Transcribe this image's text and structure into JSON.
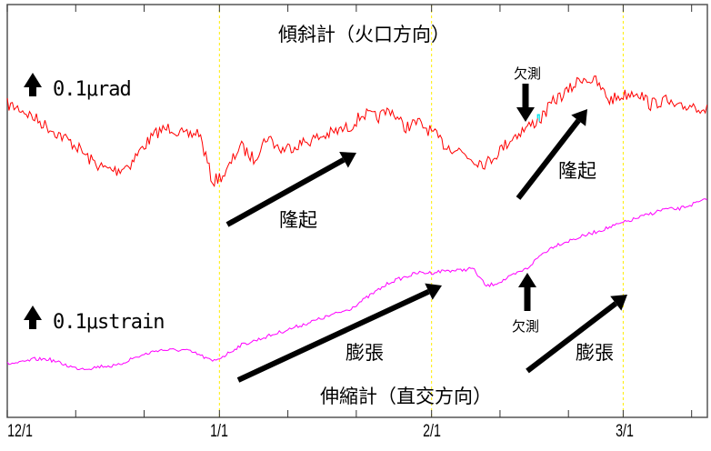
{
  "chart_data": {
    "type": "line",
    "title": "",
    "xlabel": "",
    "ylabel": "",
    "x_ticks": [
      "12/1",
      "1/1",
      "2/1",
      "3/1"
    ],
    "x_minor_tick_interval_days": 10,
    "xlim": [
      "12/1",
      "3/13"
    ],
    "grid": "dashed vertical lines at month starts",
    "x": [
      "12/1",
      "12/3",
      "12/5",
      "12/7",
      "12/9",
      "12/11",
      "12/13",
      "12/15",
      "12/17",
      "12/19",
      "12/21",
      "12/23",
      "12/25",
      "12/27",
      "12/29",
      "12/31",
      "1/2",
      "1/4",
      "1/6",
      "1/8",
      "1/10",
      "1/12",
      "1/14",
      "1/16",
      "1/18",
      "1/20",
      "1/22",
      "1/24",
      "1/26",
      "1/28",
      "1/30",
      "2/1",
      "2/3",
      "2/5",
      "2/7",
      "2/9",
      "2/11",
      "2/13",
      "2/15",
      "2/17",
      "2/19",
      "2/21",
      "2/23",
      "2/25",
      "2/27",
      "3/1",
      "3/3",
      "3/5",
      "3/7",
      "3/9",
      "3/11",
      "3/13"
    ],
    "series": [
      {
        "name": "傾斜計（火口方向）",
        "unit": "μrad",
        "color": "#ff0000",
        "values": [
          0.02,
          0,
          -0.04,
          -0.08,
          -0.12,
          -0.16,
          -0.22,
          -0.26,
          -0.27,
          -0.24,
          -0.16,
          -0.1,
          -0.08,
          -0.12,
          -0.1,
          -0.32,
          -0.28,
          -0.16,
          -0.22,
          -0.12,
          -0.18,
          -0.16,
          -0.14,
          -0.12,
          -0.1,
          -0.08,
          -0.02,
          -0.04,
          0,
          -0.08,
          -0.06,
          -0.1,
          -0.16,
          -0.18,
          -0.22,
          -0.24,
          -0.18,
          -0.12,
          -0.08,
          -0.04,
          0.04,
          0.08,
          0.14,
          0.12,
          0.04,
          0.06,
          0.08,
          0.02,
          0.04,
          0,
          0.02,
          0
        ]
      },
      {
        "name": "伸縮計（直交方向）",
        "unit": "μstrain",
        "color": "#ff00ff",
        "values": [
          0,
          0.004,
          0.02,
          0.02,
          0,
          -0.02,
          -0.02,
          -0.01,
          -0.01,
          0.02,
          0.04,
          0.06,
          0.06,
          0.06,
          0.04,
          0.01,
          0.04,
          0.08,
          0.1,
          0.12,
          0.14,
          0.16,
          0.18,
          0.2,
          0.22,
          0.24,
          0.28,
          0.32,
          0.36,
          0.38,
          0.4,
          0.4,
          0.41,
          0.41,
          0.42,
          0.34,
          0.36,
          0.39,
          0.42,
          0.48,
          0.52,
          0.54,
          0.56,
          0.58,
          0.6,
          0.62,
          0.64,
          0.66,
          0.68,
          0.68,
          0.7,
          0.72
        ]
      }
    ],
    "missing_data": {
      "date": "2/15",
      "color": "#00e5ee"
    },
    "colors": {
      "axis": "#000000",
      "grid": "#ffee00",
      "arrow": "#000000"
    }
  },
  "labels": {
    "tilt_title": "傾斜計（火口方向）",
    "tilt_scale": "0.1μrad",
    "strain_title": "伸縮計（直交方向）",
    "strain_scale": "0.1μstrain",
    "missing_tilt": "欠測",
    "missing_strain": "欠測",
    "uplift_1": "隆起",
    "uplift_2": "隆起",
    "expansion_1": "膨張",
    "expansion_2": "膨張"
  }
}
